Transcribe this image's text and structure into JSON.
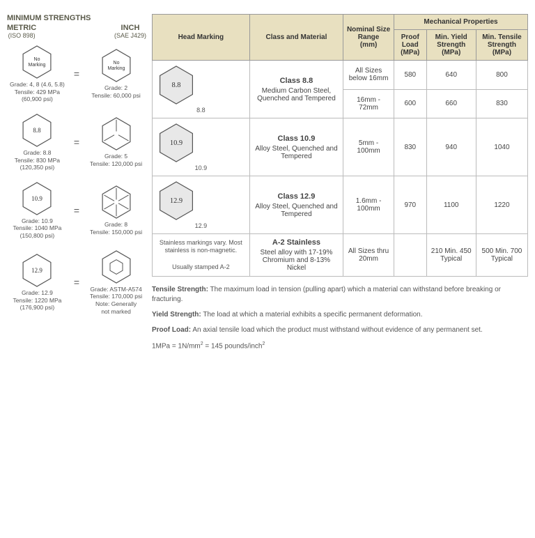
{
  "left": {
    "title": "MINIMUM STRENGTHS",
    "metric_label": "METRIC",
    "metric_sub": "(ISO 898)",
    "inch_label": "INCH",
    "inch_sub": "(SAE J429)",
    "rows": [
      {
        "metric_hex_text": "No Marking",
        "inch_hex_text": "No Marking",
        "metric_info": "Grade: 4, 8 (4.6, 5.8)\nTensile: 429 MPa\n(60,900 psi)",
        "inch_info": "Grade: 2\nTensile: 60,000 psi",
        "inch_ticks": 0
      },
      {
        "metric_hex_text": "8.8",
        "metric_info": "Grade: 8.8\nTensile: 830 MPa\n(120,350 psi)",
        "inch_info": "Grade: 5\nTensile: 120,000 psi",
        "inch_ticks": 3
      },
      {
        "metric_hex_text": "10.9",
        "metric_info": "Grade: 10.9\nTensile: 1040 MPa\n(150,800 psi)",
        "inch_info": "Grade: 8\nTensile: 150,000 psi",
        "inch_ticks": 6
      },
      {
        "metric_hex_text": "12.9",
        "metric_info": "Grade: 12.9\nTensile: 1220 MPa\n(176,900 psi)",
        "inch_info": "Grade: ASTM-A574\nTensile: 170,000 psi\nNote: Generally\nnot marked",
        "inch_small_hex": true
      }
    ]
  },
  "table": {
    "headers": {
      "head_marking": "Head Marking",
      "class_material": "Class and Material",
      "nominal_size": "Nominal Size Range",
      "nominal_unit": "(mm)",
      "mech_props": "Mechanical Properties",
      "proof_load": "Proof Load",
      "proof_unit": "(MPa)",
      "yield": "Min. Yield Strength",
      "yield_unit": "(MPa)",
      "tensile": "Min. Tensile Strength",
      "tensile_unit": "(MPa)"
    },
    "rows": [
      {
        "hex_label": "8.8",
        "hex_caption": "8.8",
        "class_name": "Class 8.8",
        "material": "Medium Carbon Steel, Quenched and Tempered",
        "subrows": [
          {
            "size": "All Sizes below 16mm",
            "proof": "580",
            "yield": "640",
            "tensile": "800"
          },
          {
            "size": "16mm - 72mm",
            "proof": "600",
            "yield": "660",
            "tensile": "830"
          }
        ]
      },
      {
        "hex_label": "10.9",
        "hex_caption": "10.9",
        "class_name": "Class 10.9",
        "material": "Alloy Steel, Quenched and Tempered",
        "subrows": [
          {
            "size": "5mm - 100mm",
            "proof": "830",
            "yield": "940",
            "tensile": "1040"
          }
        ]
      },
      {
        "hex_label": "12.9",
        "hex_caption": "12.9",
        "class_name": "Class 12.9",
        "material": "Alloy Steel, Quenched and Tempered",
        "subrows": [
          {
            "size": "1.6mm - 100mm",
            "proof": "970",
            "yield": "1100",
            "tensile": "1220"
          }
        ]
      },
      {
        "stainless_text": "Stainless markings vary. Most stainless is non-magnetic.\n\nUsually stamped A-2",
        "class_name": "A-2 Stainless",
        "material": "Steel alloy with 17-19% Chromium and 8-13% Nickel",
        "subrows": [
          {
            "size": "All Sizes thru 20mm",
            "proof": "",
            "yield": "210 Min. 450 Typical",
            "tensile": "500 Min. 700 Typical"
          }
        ]
      }
    ]
  },
  "definitions": {
    "tensile_term": "Tensile Strength:",
    "tensile_def": " The maximum load in tension (pulling apart) which a material can withstand before breaking or fracturing.",
    "yield_term": "Yield Strength:",
    "yield_def": " The load at which a material exhibits a specific permanent deformation.",
    "proof_term": "Proof Load:",
    "proof_def": " An axial tensile load which the product must withstand without evidence of any permanent set.",
    "unit_conv": "1MPa = 1N/mm² = 145 pounds/inch²"
  },
  "style": {
    "header_bg": "#e8e0c0",
    "hex_fill": "#e8e8e8",
    "hex_stroke": "#555"
  }
}
